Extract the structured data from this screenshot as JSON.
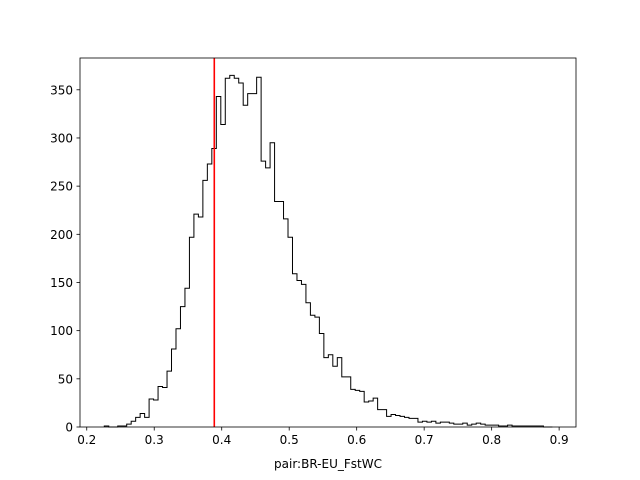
{
  "chart_data": {
    "type": "histogram",
    "title": "",
    "xlabel": "pair:BR-EU_FstWC",
    "ylabel": "",
    "xlim": [
      0.19,
      0.925
    ],
    "ylim": [
      0,
      383
    ],
    "xticks": [
      0.2,
      0.3,
      0.4,
      0.5,
      0.6,
      0.7,
      0.8,
      0.9
    ],
    "xtick_labels": [
      "0.2",
      "0.3",
      "0.4",
      "0.5",
      "0.6",
      "0.7",
      "0.8",
      "0.9"
    ],
    "yticks": [
      0,
      50,
      100,
      150,
      200,
      250,
      300,
      350
    ],
    "ytick_labels": [
      "0",
      "50",
      "100",
      "150",
      "200",
      "250",
      "300",
      "350"
    ],
    "grid": false,
    "legend": "none",
    "histtype": "step",
    "series_color": "#000000",
    "bin_start": 0.226,
    "bin_width": 0.00664,
    "counts": [
      1,
      0,
      0,
      1,
      1,
      3,
      6,
      10,
      14,
      10,
      29,
      28,
      42,
      41,
      58,
      81,
      102,
      125,
      144,
      197,
      221,
      218,
      256,
      273,
      289,
      343,
      314,
      362,
      365,
      362,
      357,
      334,
      346,
      346,
      363,
      276,
      269,
      295,
      234,
      234,
      216,
      197,
      159,
      152,
      148,
      129,
      116,
      114,
      97,
      72,
      75,
      63,
      72,
      52,
      52,
      39,
      38,
      37,
      26,
      27,
      30,
      18,
      18,
      11,
      13,
      12,
      11,
      10,
      9,
      9,
      5,
      6,
      5,
      6,
      4,
      5,
      5,
      4,
      3,
      3,
      4,
      2,
      3,
      4,
      3,
      2,
      2,
      2,
      1,
      1,
      2,
      1,
      1,
      1,
      1,
      1,
      1,
      1,
      0,
      0
    ],
    "vline": {
      "x": 0.389,
      "color": "#ff0000"
    }
  }
}
